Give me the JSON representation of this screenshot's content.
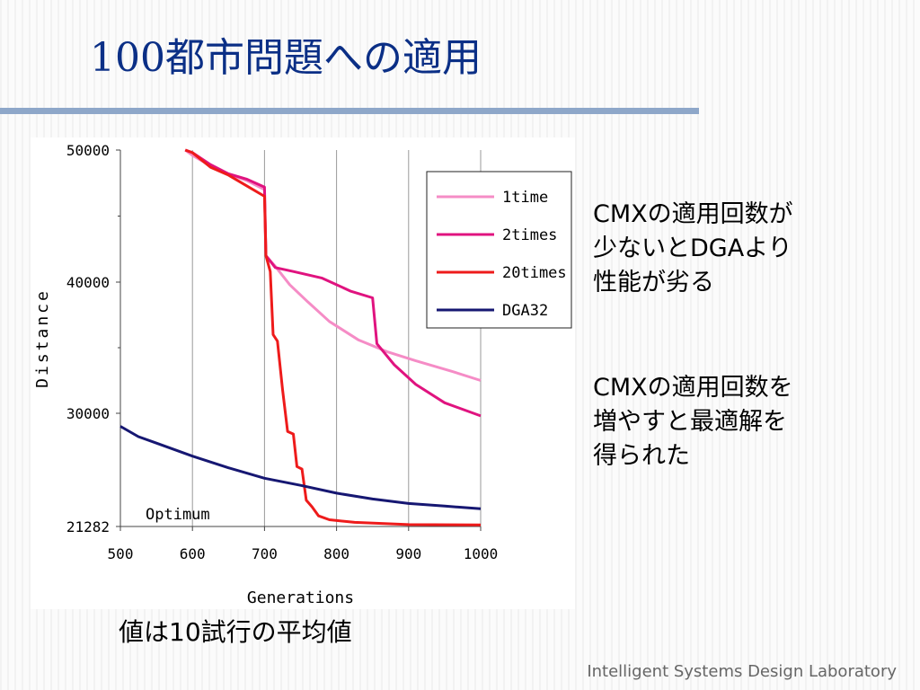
{
  "slide": {
    "title": "100都市問題への適用",
    "annotation_1": [
      "CMXの適用回数が",
      "少ないとDGAより",
      "性能が劣る"
    ],
    "annotation_2": [
      "CMXの適用回数を",
      "増やすと最適解を",
      "得られた"
    ],
    "footnote": "値は10試行の平均値",
    "footer": "Intelligent Systems Design Laboratory"
  },
  "colors": {
    "title": "#0b2f86",
    "rule": "#8ea7c9",
    "series_1time": "#f58cc6",
    "series_2times": "#e0137f",
    "series_20times": "#ee1b1b",
    "series_DGA32": "#161772"
  },
  "chart_data": {
    "type": "line",
    "xlabel": "Generations",
    "ylabel": "Distance",
    "xlim": [
      500,
      1000
    ],
    "ylim": [
      21282,
      50000
    ],
    "yscale": "linear, bottom compressed (21282 to 30000 drawn as one interval)",
    "xticks": [
      500,
      600,
      700,
      800,
      900,
      1000
    ],
    "yticks": [
      21282,
      30000,
      40000,
      50000
    ],
    "legend": "top-right",
    "grid": "vertical gridlines at x ticks",
    "annotation": "Optimum",
    "series": [
      {
        "name": "1time",
        "points": [
          [
            590,
            50000
          ],
          [
            600,
            49600
          ],
          [
            625,
            48800
          ],
          [
            650,
            48200
          ],
          [
            675,
            47700
          ],
          [
            700,
            47000
          ],
          [
            702,
            42000
          ],
          [
            715,
            41200
          ],
          [
            735,
            39800
          ],
          [
            760,
            38500
          ],
          [
            790,
            37000
          ],
          [
            830,
            35600
          ],
          [
            870,
            34700
          ],
          [
            910,
            34000
          ],
          [
            960,
            33200
          ],
          [
            1000,
            32500
          ]
        ]
      },
      {
        "name": "2times",
        "points": [
          [
            590,
            50000
          ],
          [
            600,
            49800
          ],
          [
            625,
            48900
          ],
          [
            650,
            48200
          ],
          [
            675,
            47800
          ],
          [
            700,
            47200
          ],
          [
            702,
            42000
          ],
          [
            715,
            41100
          ],
          [
            740,
            40800
          ],
          [
            780,
            40300
          ],
          [
            820,
            39300
          ],
          [
            850,
            38800
          ],
          [
            856,
            35300
          ],
          [
            880,
            33700
          ],
          [
            910,
            32200
          ],
          [
            950,
            30800
          ],
          [
            1000,
            29800
          ]
        ]
      },
      {
        "name": "20times",
        "points": [
          [
            590,
            50000
          ],
          [
            600,
            49800
          ],
          [
            625,
            48700
          ],
          [
            650,
            48100
          ],
          [
            675,
            47300
          ],
          [
            700,
            46500
          ],
          [
            702,
            42000
          ],
          [
            708,
            40800
          ],
          [
            712,
            36000
          ],
          [
            718,
            35500
          ],
          [
            725,
            31800
          ],
          [
            732,
            28600
          ],
          [
            740,
            28400
          ],
          [
            745,
            25900
          ],
          [
            752,
            25700
          ],
          [
            758,
            23300
          ],
          [
            766,
            22800
          ],
          [
            775,
            22100
          ],
          [
            790,
            21800
          ],
          [
            825,
            21600
          ],
          [
            900,
            21430
          ],
          [
            1000,
            21400
          ]
        ]
      },
      {
        "name": "DGA32",
        "points": [
          [
            500,
            29000
          ],
          [
            525,
            28200
          ],
          [
            550,
            27700
          ],
          [
            600,
            26700
          ],
          [
            650,
            25800
          ],
          [
            700,
            25000
          ],
          [
            750,
            24450
          ],
          [
            800,
            23850
          ],
          [
            850,
            23400
          ],
          [
            900,
            23050
          ],
          [
            950,
            22850
          ],
          [
            1000,
            22650
          ]
        ]
      }
    ]
  }
}
